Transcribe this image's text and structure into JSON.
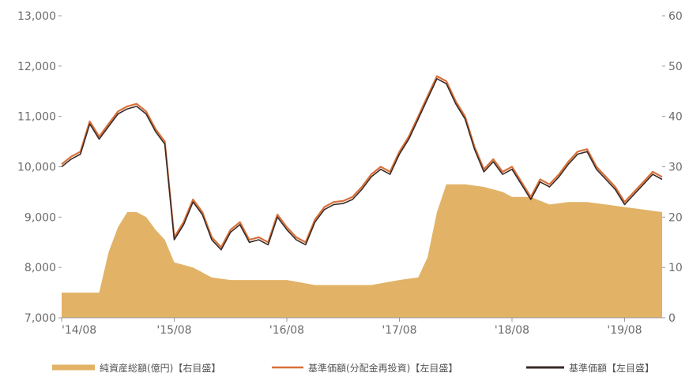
{
  "chart_data": {
    "type": "line",
    "x_start": "2014-08",
    "x_end": "2019-12",
    "x_ticks": [
      "'14/08",
      "'15/08",
      "'16/08",
      "'17/08",
      "'18/08",
      "'19/08"
    ],
    "y_left": {
      "lim": [
        7000,
        13000
      ],
      "ticks": [
        "7,000",
        "8,000",
        "9,000",
        "10,000",
        "11,000",
        "12,000",
        "13,000"
      ]
    },
    "y_right": {
      "lim": [
        0,
        60
      ],
      "ticks": [
        "0",
        "10",
        "20",
        "30",
        "40",
        "50",
        "60"
      ]
    },
    "grid": false,
    "legend_position": "bottom",
    "series": [
      {
        "name": "純資産総額(億円)【右目盛】",
        "type": "area",
        "axis": "right",
        "color": "#e2b266",
        "x": [
          "2014-08",
          "2014-10",
          "2014-12",
          "2015-01",
          "2015-02",
          "2015-03",
          "2015-04",
          "2015-05",
          "2015-06",
          "2015-07",
          "2015-08",
          "2015-10",
          "2015-12",
          "2016-02",
          "2016-05",
          "2016-08",
          "2016-11",
          "2017-02",
          "2017-05",
          "2017-08",
          "2017-10",
          "2017-11",
          "2017-12",
          "2018-01",
          "2018-03",
          "2018-05",
          "2018-07",
          "2018-08",
          "2018-10",
          "2018-12",
          "2019-02",
          "2019-04",
          "2019-06",
          "2019-08",
          "2019-10",
          "2019-12"
        ],
        "values": [
          5,
          5,
          5,
          13,
          18,
          21,
          21,
          20,
          17.5,
          15.5,
          11,
          10,
          8,
          7.5,
          7.5,
          7.5,
          6.5,
          6.5,
          6.5,
          7.5,
          8,
          12,
          21,
          26.5,
          26.5,
          26,
          25,
          24,
          24,
          22.5,
          23,
          23,
          22.5,
          22,
          21.5,
          21
        ]
      },
      {
        "name": "基準価額(分配金再投資)【左目盛】",
        "type": "line",
        "axis": "left",
        "color": "#d8703a",
        "x": [
          "2014-08",
          "2014-09",
          "2014-10",
          "2014-11",
          "2014-12",
          "2015-01",
          "2015-02",
          "2015-03",
          "2015-04",
          "2015-05",
          "2015-06",
          "2015-07",
          "2015-08",
          "2015-09",
          "2015-10",
          "2015-11",
          "2015-12",
          "2016-01",
          "2016-02",
          "2016-03",
          "2016-04",
          "2016-05",
          "2016-06",
          "2016-07",
          "2016-08",
          "2016-09",
          "2016-10",
          "2016-11",
          "2016-12",
          "2017-01",
          "2017-02",
          "2017-03",
          "2017-04",
          "2017-05",
          "2017-06",
          "2017-07",
          "2017-08",
          "2017-09",
          "2017-10",
          "2017-11",
          "2017-12",
          "2018-01",
          "2018-02",
          "2018-03",
          "2018-04",
          "2018-05",
          "2018-06",
          "2018-07",
          "2018-08",
          "2018-09",
          "2018-10",
          "2018-11",
          "2018-12",
          "2019-01",
          "2019-02",
          "2019-03",
          "2019-04",
          "2019-05",
          "2019-06",
          "2019-07",
          "2019-08",
          "2019-09",
          "2019-10",
          "2019-11",
          "2019-12"
        ],
        "values": [
          10050,
          10200,
          10300,
          10900,
          10600,
          10850,
          11100,
          11200,
          11250,
          11100,
          10750,
          10500,
          8600,
          8900,
          9350,
          9100,
          8600,
          8400,
          8750,
          8900,
          8550,
          8600,
          8500,
          9050,
          8800,
          8600,
          8500,
          8950,
          9200,
          9300,
          9320,
          9400,
          9600,
          9850,
          10000,
          9900,
          10300,
          10600,
          11000,
          11400,
          11800,
          11700,
          11300,
          11000,
          10400,
          9950,
          10150,
          9900,
          10000,
          9700,
          9400,
          9750,
          9650,
          9850,
          10100,
          10300,
          10350,
          10000,
          9800,
          9600,
          9300,
          9500,
          9700,
          9900,
          9800
        ]
      },
      {
        "name": "基準価額【左目盛】",
        "type": "line",
        "axis": "left",
        "color": "#3a2a26",
        "x": [
          "2014-08",
          "2014-09",
          "2014-10",
          "2014-11",
          "2014-12",
          "2015-01",
          "2015-02",
          "2015-03",
          "2015-04",
          "2015-05",
          "2015-06",
          "2015-07",
          "2015-08",
          "2015-09",
          "2015-10",
          "2015-11",
          "2015-12",
          "2016-01",
          "2016-02",
          "2016-03",
          "2016-04",
          "2016-05",
          "2016-06",
          "2016-07",
          "2016-08",
          "2016-09",
          "2016-10",
          "2016-11",
          "2016-12",
          "2017-01",
          "2017-02",
          "2017-03",
          "2017-04",
          "2017-05",
          "2017-06",
          "2017-07",
          "2017-08",
          "2017-09",
          "2017-10",
          "2017-11",
          "2017-12",
          "2018-01",
          "2018-02",
          "2018-03",
          "2018-04",
          "2018-05",
          "2018-06",
          "2018-07",
          "2018-08",
          "2018-09",
          "2018-10",
          "2018-11",
          "2018-12",
          "2019-01",
          "2019-02",
          "2019-03",
          "2019-04",
          "2019-05",
          "2019-06",
          "2019-07",
          "2019-08",
          "2019-09",
          "2019-10",
          "2019-11",
          "2019-12"
        ],
        "values": [
          10000,
          10150,
          10250,
          10850,
          10550,
          10800,
          11050,
          11150,
          11200,
          11050,
          10700,
          10450,
          8550,
          8850,
          9300,
          9050,
          8550,
          8350,
          8700,
          8850,
          8500,
          8550,
          8450,
          9000,
          8750,
          8550,
          8450,
          8900,
          9150,
          9250,
          9270,
          9350,
          9550,
          9800,
          9950,
          9850,
          10250,
          10550,
          10950,
          11350,
          11750,
          11650,
          11250,
          10950,
          10350,
          9900,
          10100,
          9850,
          9950,
          9650,
          9350,
          9700,
          9600,
          9800,
          10050,
          10250,
          10300,
          9950,
          9750,
          9550,
          9250,
          9450,
          9650,
          9850,
          9750
        ]
      }
    ]
  }
}
